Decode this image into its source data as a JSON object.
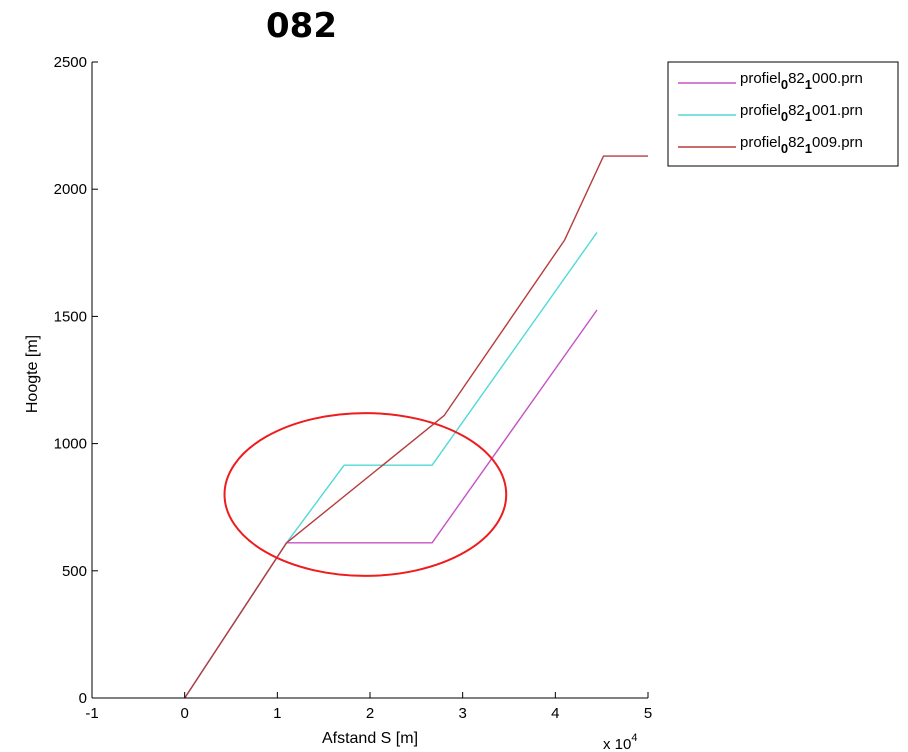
{
  "chart_data": {
    "type": "line",
    "title": "082",
    "xlabel": "Afstand S [m]",
    "ylabel": "Hoogte [m]",
    "x_multiplier_label": {
      "base": "x 10",
      "exp": "4"
    },
    "xlim": [
      -1,
      5
    ],
    "ylim": [
      0,
      2500
    ],
    "xticks": [
      -1,
      0,
      1,
      2,
      3,
      4,
      5
    ],
    "yticks": [
      0,
      500,
      1000,
      1500,
      2000,
      2500
    ],
    "grid": false,
    "legend_position": "outside-top-right",
    "series": [
      {
        "name_parts": [
          "profiel",
          "0",
          "82",
          "1",
          "000.prn"
        ],
        "color": "#c653c6",
        "x": [
          0,
          1.1,
          2.67,
          4.45
        ],
        "y": [
          0,
          610,
          610,
          1525
        ]
      },
      {
        "name_parts": [
          "profiel",
          "0",
          "82",
          "1",
          "001.prn"
        ],
        "color": "#52d9d9",
        "x": [
          0,
          1.1,
          1.72,
          2.67,
          4.45
        ],
        "y": [
          0,
          610,
          915,
          915,
          1830
        ]
      },
      {
        "name_parts": [
          "profiel",
          "0",
          "82",
          "1",
          "009.prn"
        ],
        "color": "#b63d3d",
        "x": [
          0,
          1.1,
          2.8,
          4.1,
          4.52,
          5.0
        ],
        "y": [
          0,
          610,
          1110,
          1800,
          2130,
          2130
        ]
      }
    ],
    "annotation": {
      "shape": "ellipse",
      "color": "#ee1c1c",
      "center": [
        1.95,
        800
      ],
      "rx": 1.52,
      "ry": 320
    }
  }
}
